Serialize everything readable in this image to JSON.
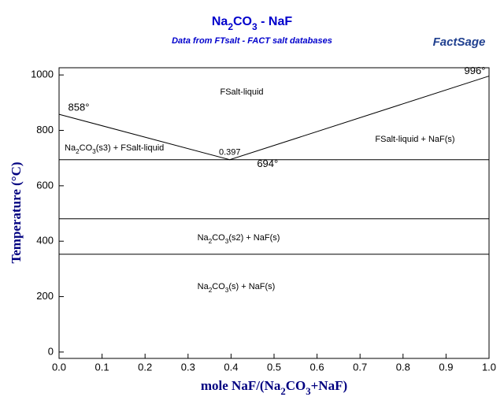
{
  "chart_data": {
    "type": "phase-diagram",
    "title": [
      "Na",
      "2",
      "CO",
      "3",
      " - NaF"
    ],
    "subtitle": "Data from FTsalt - FACT salt databases",
    "logo": "FactSage",
    "xlabel": [
      "mole NaF/(Na",
      "2",
      "CO",
      "3",
      "+NaF)"
    ],
    "ylabel": "Temperature (°C)",
    "xlim": [
      0,
      1
    ],
    "ylim": [
      -23,
      1026
    ],
    "xticks": [
      {
        "value": 0,
        "label": "0.0"
      },
      0.1,
      0.2,
      0.3,
      0.4,
      0.5,
      0.6,
      0.7,
      0.8,
      0.9,
      {
        "value": 1,
        "label": "1.0"
      }
    ],
    "yticks": [
      0,
      200,
      400,
      600,
      800,
      1000
    ],
    "color": "#000000",
    "series": [
      {
        "x": [
          0,
          0.397,
          1
        ],
        "values": [
          858,
          694,
          996
        ],
        "value_labels": [
          "858°",
          "694°",
          "996°"
        ],
        "x_value_labels": [
          null,
          "0.397",
          null
        ]
      },
      {
        "x": [
          0,
          1
        ],
        "values": [
          694,
          694
        ]
      },
      {
        "x": [
          0,
          1
        ],
        "values": [
          481,
          481
        ]
      },
      {
        "x": [
          0,
          1
        ],
        "values": [
          353,
          353
        ]
      }
    ],
    "regions": [
      [
        "FSalt-liquid"
      ],
      [
        "Na",
        "2",
        "CO",
        "3",
        "(s3) + FSalt-liquid"
      ],
      [
        "FSalt-liquid + NaF(s)"
      ],
      [
        "Na",
        "2",
        "CO",
        "3",
        "(s2) + NaF(s)"
      ],
      [
        "Na",
        "2",
        "CO",
        "3",
        "(s) + NaF(s)"
      ]
    ]
  }
}
